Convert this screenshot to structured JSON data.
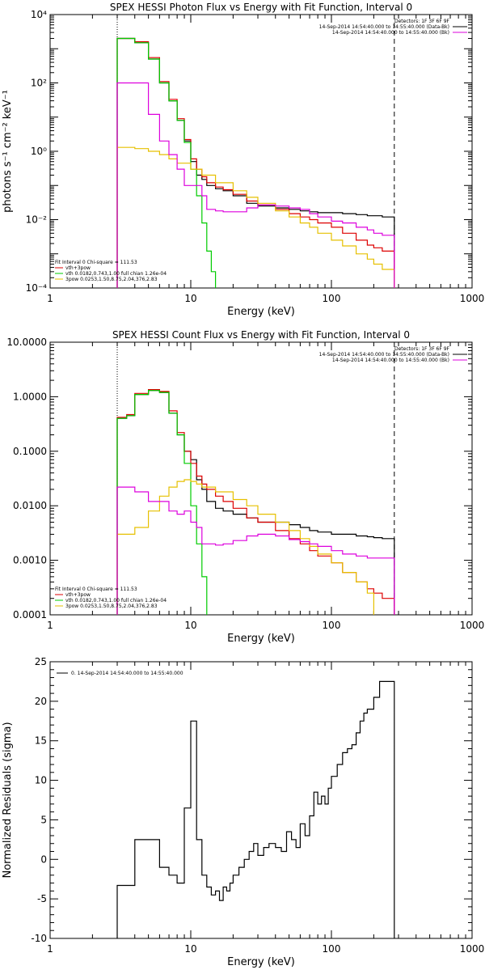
{
  "chart_data": [
    {
      "type": "line",
      "title": "SPEX HESSI Photon Flux vs Energy with Fit Function, Interval 0",
      "xlabel": "Energy (keV)",
      "ylabel": "photons s⁻¹ cm⁻² keV⁻¹",
      "xscale": "log",
      "yscale": "log",
      "xlim": [
        1,
        1000
      ],
      "ylim": [
        0.0001,
        10000
      ],
      "x_ticks": [
        "1",
        "10",
        "100",
        "1000"
      ],
      "y_ticks": [
        "10⁻⁴",
        "10⁻²",
        "10⁰",
        "10²",
        "10⁴"
      ],
      "legend_top": [
        "Detectors: 1F 3F 6F 9F",
        "14-Sep-2014 14:54:40.000 to 14:55:40.000 (Data-Bk)",
        "14-Sep-2014 14:54:40.000 to 14:55:40.000 (Bk)"
      ],
      "legend_bottom": [
        "Fit Interval 0   Chi-square = 111.53",
        "vth+3pow",
        "vth 0.0182,0.743,1.00  full chian 1.26e-04",
        "3pow 0.0253,1.50,8.75,2.04,376,2.83"
      ],
      "vlines": [
        3,
        280
      ],
      "series": [
        {
          "name": "Data-Bk",
          "color": "#000000",
          "x": [
            3,
            3.5,
            4,
            5,
            6,
            7,
            8,
            9,
            10,
            11,
            12,
            13,
            15,
            17,
            20,
            25,
            30,
            40,
            50,
            60,
            70,
            80,
            100,
            120,
            150,
            180,
            200,
            230,
            280
          ],
          "values": [
            2000,
            2000,
            1500,
            500,
            100,
            30,
            8,
            2,
            0.5,
            0.2,
            0.15,
            0.1,
            0.08,
            0.07,
            0.05,
            0.03,
            0.025,
            0.022,
            0.02,
            0.018,
            0.017,
            0.016,
            0.016,
            0.015,
            0.014,
            0.013,
            0.013,
            0.012,
            0.012
          ]
        },
        {
          "name": "vth+3pow",
          "color": "#dd0000",
          "x": [
            3,
            3.5,
            4,
            5,
            6,
            7,
            8,
            9,
            10,
            11,
            12,
            13,
            15,
            17,
            20,
            25,
            30,
            40,
            50,
            60,
            70,
            80,
            100,
            120,
            150,
            180,
            200,
            230,
            280
          ],
          "values": [
            2000,
            2000,
            1600,
            550,
            110,
            33,
            9,
            2.2,
            0.6,
            0.3,
            0.18,
            0.12,
            0.09,
            0.075,
            0.055,
            0.035,
            0.027,
            0.02,
            0.015,
            0.012,
            0.01,
            0.008,
            0.006,
            0.004,
            0.0025,
            0.0018,
            0.0015,
            0.0012,
            0.0009
          ]
        },
        {
          "name": "vth",
          "color": "#00cc00",
          "x": [
            3,
            3.5,
            4,
            5,
            6,
            7,
            8,
            9,
            10,
            11,
            12,
            13,
            14,
            15
          ],
          "values": [
            2000,
            2000,
            1500,
            500,
            100,
            30,
            8,
            1.8,
            0.3,
            0.05,
            0.008,
            0.0012,
            0.0003,
            0.0001
          ]
        },
        {
          "name": "3pow",
          "color": "#e6c000",
          "x": [
            3,
            4,
            5,
            6,
            7,
            8,
            10,
            12,
            15,
            20,
            25,
            30,
            40,
            50,
            60,
            70,
            80,
            100,
            120,
            150,
            180,
            200,
            230,
            280
          ],
          "values": [
            1.3,
            1.2,
            1.0,
            0.8,
            0.6,
            0.45,
            0.3,
            0.2,
            0.12,
            0.07,
            0.045,
            0.03,
            0.018,
            0.012,
            0.008,
            0.006,
            0.004,
            0.0025,
            0.0017,
            0.001,
            0.0007,
            0.0005,
            0.00035,
            0.00018
          ]
        },
        {
          "name": "Bk",
          "color": "#dd00dd",
          "x": [
            3,
            4,
            5,
            6,
            7,
            8,
            9,
            10,
            11,
            12,
            13,
            15,
            17,
            20,
            25,
            30,
            40,
            50,
            60,
            70,
            80,
            100,
            120,
            150,
            180,
            200,
            230,
            280
          ],
          "values": [
            100,
            100,
            12,
            2,
            0.8,
            0.3,
            0.1,
            0.1,
            0.1,
            0.05,
            0.02,
            0.018,
            0.017,
            0.017,
            0.022,
            0.027,
            0.025,
            0.022,
            0.02,
            0.015,
            0.012,
            0.009,
            0.008,
            0.006,
            0.005,
            0.004,
            0.0035,
            0.003
          ]
        }
      ]
    },
    {
      "type": "line",
      "title": "SPEX HESSI Count Flux vs Energy with Fit Function, Interval 0",
      "xlabel": "Energy (keV)",
      "ylabel": "",
      "xscale": "log",
      "yscale": "log",
      "xlim": [
        1,
        1000
      ],
      "ylim": [
        0.0001,
        10
      ],
      "x_ticks": [
        "1",
        "10",
        "100",
        "1000"
      ],
      "y_ticks": [
        "0.0001",
        "0.0010",
        "0.0100",
        "0.1000",
        "1.0000",
        "10.0000"
      ],
      "legend_top": [
        "Detectors: 1F 3F 6F 9F",
        "14-Sep-2014 14:54:40.000 to 14:55:40.000 (Data-Bk)",
        "14-Sep-2014 14:54:40.000 to 14:55:40.000 (Bk)"
      ],
      "legend_bottom": [
        "Fit Interval 0   Chi-square = 111.53",
        "vth+3pow",
        "vth 0.0182,0.743,1.00  full chian 1.26e-04",
        "3pow 0.0253,1.50,8.75,2.04,376,2.83"
      ],
      "vlines": [
        3,
        280
      ],
      "series": [
        {
          "name": "Data-Bk",
          "color": "#000000",
          "x": [
            3,
            3.5,
            4,
            5,
            6,
            7,
            8,
            9,
            10,
            11,
            12,
            13,
            15,
            17,
            20,
            25,
            30,
            40,
            50,
            60,
            70,
            80,
            100,
            120,
            150,
            180,
            200,
            230,
            280
          ],
          "values": [
            0.4,
            0.45,
            1.1,
            1.3,
            1.2,
            0.5,
            0.2,
            0.1,
            0.07,
            0.03,
            0.02,
            0.012,
            0.009,
            0.008,
            0.007,
            0.006,
            0.005,
            0.005,
            0.0045,
            0.004,
            0.0035,
            0.0033,
            0.003,
            0.003,
            0.0028,
            0.0027,
            0.0026,
            0.0025,
            0.0012
          ]
        },
        {
          "name": "vth+3pow",
          "color": "#dd0000",
          "x": [
            3,
            3.5,
            4,
            5,
            6,
            7,
            8,
            9,
            10,
            11,
            12,
            13,
            15,
            17,
            20,
            25,
            30,
            40,
            50,
            60,
            70,
            80,
            100,
            120,
            150,
            180,
            200,
            230,
            280
          ],
          "values": [
            0.42,
            0.47,
            1.15,
            1.35,
            1.25,
            0.55,
            0.22,
            0.1,
            0.06,
            0.035,
            0.025,
            0.02,
            0.015,
            0.012,
            0.009,
            0.006,
            0.005,
            0.0035,
            0.0025,
            0.002,
            0.0015,
            0.0012,
            0.0009,
            0.0006,
            0.0004,
            0.0003,
            0.00025,
            0.0002,
            0.0001
          ]
        },
        {
          "name": "vth",
          "color": "#00cc00",
          "x": [
            3,
            3.5,
            4,
            5,
            6,
            7,
            8,
            9,
            10,
            11,
            12,
            13
          ],
          "values": [
            0.4,
            0.45,
            1.1,
            1.3,
            1.2,
            0.5,
            0.2,
            0.06,
            0.01,
            0.002,
            0.0005,
            0.0001
          ]
        },
        {
          "name": "3pow",
          "color": "#e6c000",
          "x": [
            3,
            4,
            5,
            6,
            7,
            8,
            9,
            10,
            11,
            12,
            15,
            20,
            25,
            30,
            40,
            50,
            60,
            70,
            80,
            100,
            120,
            150,
            180,
            200
          ],
          "values": [
            0.003,
            0.004,
            0.008,
            0.015,
            0.022,
            0.028,
            0.03,
            0.028,
            0.025,
            0.022,
            0.018,
            0.013,
            0.01,
            0.007,
            0.005,
            0.0035,
            0.0025,
            0.0018,
            0.0013,
            0.0009,
            0.0006,
            0.0004,
            0.00025,
            0.0001
          ]
        },
        {
          "name": "Bk",
          "color": "#dd00dd",
          "x": [
            3,
            4,
            5,
            6,
            7,
            8,
            9,
            10,
            11,
            12,
            13,
            15,
            17,
            20,
            25,
            30,
            40,
            50,
            60,
            70,
            80,
            100,
            120,
            150,
            180,
            200,
            230,
            280
          ],
          "values": [
            0.022,
            0.018,
            0.012,
            0.012,
            0.008,
            0.007,
            0.008,
            0.005,
            0.004,
            0.002,
            0.002,
            0.0019,
            0.002,
            0.0023,
            0.0028,
            0.003,
            0.0028,
            0.0024,
            0.0022,
            0.002,
            0.0018,
            0.0015,
            0.0013,
            0.0012,
            0.0011,
            0.0011,
            0.0011,
            0.0009
          ]
        }
      ]
    },
    {
      "type": "line",
      "title": "",
      "xlabel": "Energy (keV)",
      "ylabel": "Normalized Residuals (sigma)",
      "xscale": "log",
      "yscale": "linear",
      "xlim": [
        1,
        1000
      ],
      "ylim": [
        -10,
        25
      ],
      "x_ticks": [
        "1",
        "10",
        "100",
        "1000"
      ],
      "y_ticks": [
        "-10",
        "-5",
        "0",
        "5",
        "10",
        "15",
        "20",
        "25"
      ],
      "legend_top": [
        "0. 14-Sep-2014 14:54:40.000 to 14:55:40.000"
      ],
      "series": [
        {
          "name": "0. 14-Sep-2014 14:54:40.000 to 14:55:40.000",
          "color": "#000000",
          "x": [
            3,
            3.5,
            4,
            5,
            6,
            7,
            8,
            9,
            10,
            11,
            12,
            13,
            14,
            15,
            16,
            17,
            18,
            19,
            20,
            22,
            24,
            26,
            28,
            30,
            33,
            36,
            40,
            44,
            48,
            52,
            56,
            60,
            65,
            70,
            75,
            80,
            85,
            90,
            95,
            100,
            110,
            120,
            130,
            140,
            150,
            160,
            170,
            180,
            200,
            220,
            240,
            280
          ],
          "values": [
            -3.3,
            -3.3,
            2.5,
            2.5,
            -1.0,
            -2.0,
            -3.0,
            6.5,
            17.5,
            2.5,
            -2.0,
            -3.5,
            -4.5,
            -4.0,
            -5.2,
            -3.5,
            -4.0,
            -3.0,
            -2.0,
            -1.0,
            0.0,
            1.0,
            2.0,
            0.5,
            1.5,
            2.0,
            1.5,
            1.0,
            3.5,
            2.5,
            1.5,
            4.5,
            3.0,
            5.5,
            8.5,
            7.0,
            8.0,
            7.0,
            9.0,
            10.5,
            12.0,
            13.5,
            14.0,
            14.5,
            16.0,
            17.5,
            18.5,
            19.0,
            20.5,
            22.5,
            22.5,
            -10
          ]
        }
      ]
    }
  ]
}
